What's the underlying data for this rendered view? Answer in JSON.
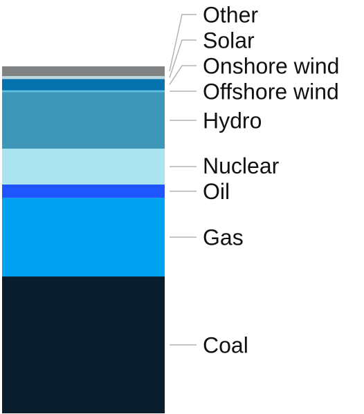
{
  "chart_data": {
    "type": "bar",
    "stacked": true,
    "title": "",
    "xlabel": "",
    "ylabel": "",
    "categories": [
      ""
    ],
    "series": [
      {
        "name": "Coal",
        "values": [
          33.6
        ],
        "color": "#0a1d2d"
      },
      {
        "name": "Gas",
        "values": [
          19.3
        ],
        "color": "#00a3f2"
      },
      {
        "name": "Oil",
        "values": [
          3.3
        ],
        "color": "#1f55ff"
      },
      {
        "name": "Nuclear",
        "values": [
          8.8
        ],
        "color": "#a9e4ef"
      },
      {
        "name": "Hydro",
        "values": [
          13.9
        ],
        "color": "#3e96b8"
      },
      {
        "name": "Offshore wind",
        "values": [
          0.4
        ],
        "color": "#5cc2e8"
      },
      {
        "name": "Onshore wind",
        "values": [
          2.8
        ],
        "color": "#0472ad"
      },
      {
        "name": "Solar",
        "values": [
          0.7
        ],
        "color": "#bcd8e0"
      },
      {
        "name": "Other",
        "values": [
          2.4
        ],
        "color": "#808284"
      }
    ],
    "legend_placement": "right",
    "grid": false
  }
}
